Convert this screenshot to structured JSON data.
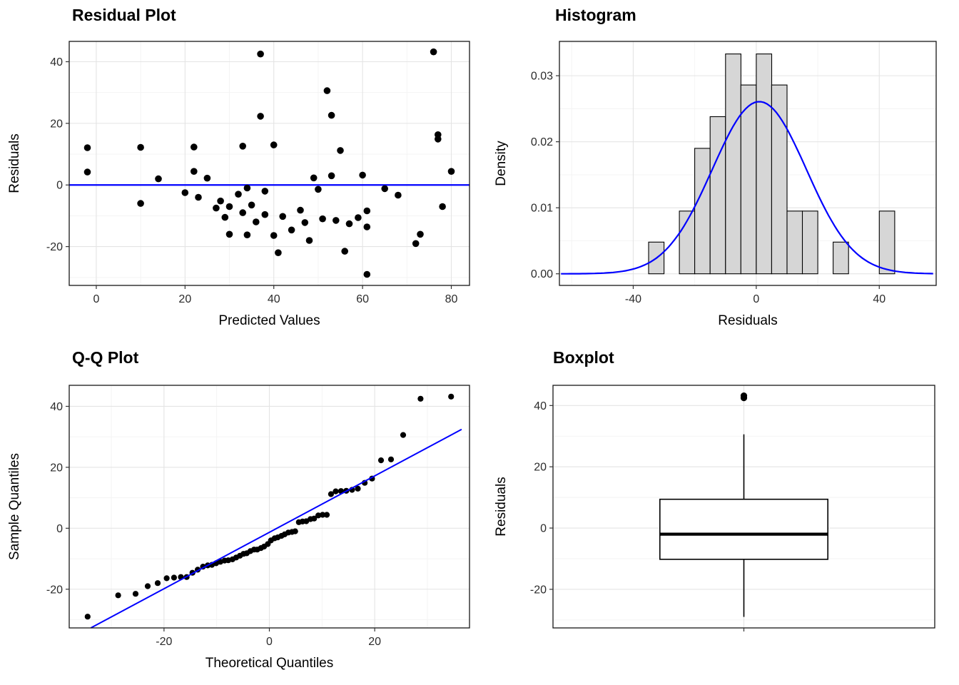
{
  "colors": {
    "accent_blue": "#0000ff",
    "point_black": "#000000",
    "bar_fill": "#d6d6d6",
    "bar_stroke": "#000000",
    "panel_border": "#171717",
    "grid_major": "#e4e4e4",
    "grid_minor": "#f3f3f3",
    "tick_color": "#333333",
    "tick_label_color": "#2b2b2b",
    "text_color": "#000000"
  },
  "chart_data": [
    {
      "id": "residual-plot",
      "type": "scatter",
      "title": "Residual Plot",
      "xlabel": "Predicted Values",
      "ylabel": "Residuals",
      "xlim": [
        -6.1,
        84.1
      ],
      "ylim": [
        -32.6,
        46.6
      ],
      "xticks": [
        0,
        20,
        40,
        60,
        80
      ],
      "xtick_labels": [
        "0",
        "20",
        "40",
        "60",
        "80"
      ],
      "yticks": [
        -20,
        0,
        20,
        40
      ],
      "ytick_labels": [
        "-20",
        "0",
        "20",
        "40"
      ],
      "xticks_minor": [
        10,
        30,
        50,
        70
      ],
      "yticks_minor": [
        -30,
        -10,
        10,
        30
      ],
      "hline": 0,
      "point_radius": 4.8,
      "points": [
        [
          -2,
          12.1
        ],
        [
          -2,
          4.2
        ],
        [
          10,
          12.2
        ],
        [
          10,
          -6
        ],
        [
          14,
          2
        ],
        [
          20,
          -2.5
        ],
        [
          22,
          12.3
        ],
        [
          22,
          4.4
        ],
        [
          23,
          -4
        ],
        [
          25,
          2.2
        ],
        [
          27,
          -7.5
        ],
        [
          28,
          -5.2
        ],
        [
          29,
          -10.5
        ],
        [
          30,
          -16
        ],
        [
          30,
          -7
        ],
        [
          32,
          -3
        ],
        [
          33,
          12.6
        ],
        [
          33,
          -9
        ],
        [
          34,
          -1
        ],
        [
          34,
          -16.2
        ],
        [
          35,
          -6.5
        ],
        [
          36,
          -12
        ],
        [
          37,
          42.5
        ],
        [
          37,
          22.3
        ],
        [
          38,
          -2
        ],
        [
          38,
          -9.6
        ],
        [
          40,
          13
        ],
        [
          40,
          -16.4
        ],
        [
          41,
          -22
        ],
        [
          42,
          -10.2
        ],
        [
          44,
          -14.6
        ],
        [
          46,
          -8.2
        ],
        [
          47,
          -12.2
        ],
        [
          48,
          -18
        ],
        [
          49,
          2.3
        ],
        [
          50,
          -1.4
        ],
        [
          51,
          -11
        ],
        [
          52,
          30.6
        ],
        [
          53,
          22.6
        ],
        [
          53,
          3
        ],
        [
          54,
          -11.5
        ],
        [
          55,
          11.2
        ],
        [
          56,
          -21.5
        ],
        [
          57,
          -12.6
        ],
        [
          59,
          -10.6
        ],
        [
          60,
          3.2
        ],
        [
          61,
          -8.4
        ],
        [
          61,
          -13.6
        ],
        [
          61,
          -29
        ],
        [
          65,
          -1.2
        ],
        [
          68,
          -3.3
        ],
        [
          72,
          -19
        ],
        [
          73,
          -16
        ],
        [
          76,
          43.2
        ],
        [
          77,
          16.3
        ],
        [
          77,
          14.9
        ],
        [
          78,
          -7
        ],
        [
          80,
          4.4
        ]
      ]
    },
    {
      "id": "histogram",
      "type": "histogram",
      "title": "Histogram",
      "xlabel": "Residuals",
      "ylabel": "Density",
      "xlim": [
        -64,
        58.5
      ],
      "ylim": [
        -0.00176,
        0.0352
      ],
      "xticks": [
        -40,
        0,
        40
      ],
      "xtick_labels": [
        "-40",
        "0",
        "40"
      ],
      "yticks": [
        0,
        0.01,
        0.02,
        0.03
      ],
      "ytick_labels": [
        "0.00",
        "0.01",
        "0.02",
        "0.03"
      ],
      "xticks_minor": [
        -60,
        -20,
        20
      ],
      "yticks_minor": [
        0.005,
        0.015,
        0.025,
        0.035
      ],
      "bin_width": 5,
      "bins": [
        [
          -32.5,
          0.0048
        ],
        [
          -22.5,
          0.0095
        ],
        [
          -17.5,
          0.019
        ],
        [
          -12.5,
          0.0238
        ],
        [
          -7.5,
          0.0333
        ],
        [
          -2.5,
          0.0286
        ],
        [
          2.5,
          0.0333
        ],
        [
          7.5,
          0.0286
        ],
        [
          12.5,
          0.0095
        ],
        [
          17.5,
          0.0095
        ],
        [
          27.5,
          0.0048
        ],
        [
          42.5,
          0.0095
        ]
      ],
      "curve": {
        "mean": 1,
        "sd": 15.3
      }
    },
    {
      "id": "qq-plot",
      "type": "scatter",
      "title": "Q-Q Plot",
      "xlabel": "Theoretical Quantiles",
      "ylabel": "Sample Quantiles",
      "xlim": [
        -38,
        38
      ],
      "ylim": [
        -32.7,
        46.9
      ],
      "xticks": [
        -20,
        0,
        20
      ],
      "xtick_labels": [
        "-20",
        "0",
        "20"
      ],
      "yticks": [
        -20,
        0,
        20,
        40
      ],
      "ytick_labels": [
        "-20",
        "0",
        "20",
        "40"
      ],
      "xticks_minor": [
        -30,
        -10,
        10,
        30
      ],
      "yticks_minor": [
        -30,
        -10,
        10,
        30
      ],
      "point_radius": 4.1,
      "line": [
        [
          -33.9,
          -32.7
        ],
        [
          36.5,
          32.45
        ]
      ],
      "points": [
        [
          -34.5,
          -29
        ],
        [
          -28.7,
          -22
        ],
        [
          -25.4,
          -21.5
        ],
        [
          -23.1,
          -19
        ],
        [
          -21.2,
          -18
        ],
        [
          -19.5,
          -16.4
        ],
        [
          -18.1,
          -16.2
        ],
        [
          -16.8,
          -16
        ],
        [
          -15.7,
          -16
        ],
        [
          -14.6,
          -14.6
        ],
        [
          -13.6,
          -13.6
        ],
        [
          -12.6,
          -12.6
        ],
        [
          -11.7,
          -12.2
        ],
        [
          -10.9,
          -12
        ],
        [
          -10.1,
          -11.5
        ],
        [
          -9.3,
          -11
        ],
        [
          -8.5,
          -10.6
        ],
        [
          -7.8,
          -10.5
        ],
        [
          -7,
          -10.2
        ],
        [
          -6.3,
          -9.6
        ],
        [
          -5.6,
          -9
        ],
        [
          -4.9,
          -8.4
        ],
        [
          -4.3,
          -8.2
        ],
        [
          -3.6,
          -7.5
        ],
        [
          -2.9,
          -7
        ],
        [
          -2.3,
          -7
        ],
        [
          -1.6,
          -6.5
        ],
        [
          -1,
          -6
        ],
        [
          -0.3,
          -5.2
        ],
        [
          0.3,
          -4
        ],
        [
          1,
          -3.3
        ],
        [
          1.6,
          -3
        ],
        [
          2.3,
          -2.5
        ],
        [
          2.9,
          -2
        ],
        [
          3.6,
          -1.4
        ],
        [
          4.3,
          -1.2
        ],
        [
          4.9,
          -1
        ],
        [
          5.6,
          2
        ],
        [
          6.3,
          2.2
        ],
        [
          7,
          2.3
        ],
        [
          7.8,
          3
        ],
        [
          8.5,
          3.2
        ],
        [
          9.3,
          4.2
        ],
        [
          10.1,
          4.4
        ],
        [
          10.9,
          4.4
        ],
        [
          11.7,
          11.2
        ],
        [
          12.6,
          12.1
        ],
        [
          13.6,
          12.2
        ],
        [
          14.6,
          12.3
        ],
        [
          15.7,
          12.6
        ],
        [
          16.8,
          13
        ],
        [
          18.1,
          14.9
        ],
        [
          19.5,
          16.3
        ],
        [
          21.2,
          22.3
        ],
        [
          23.1,
          22.6
        ],
        [
          25.4,
          30.6
        ],
        [
          28.7,
          42.5
        ],
        [
          34.5,
          43.2
        ]
      ]
    },
    {
      "id": "boxplot",
      "type": "boxplot",
      "title": "Boxplot",
      "xlabel": "",
      "ylabel": "Residuals",
      "xlim": [
        0,
        2
      ],
      "ylim": [
        -32.6,
        46.6
      ],
      "xticks": [
        1
      ],
      "xtick_labels": [
        ""
      ],
      "yticks": [
        -20,
        0,
        20,
        40
      ],
      "ytick_labels": [
        "-20",
        "0",
        "20",
        "40"
      ],
      "xticks_minor": [],
      "yticks_minor": [
        -30,
        -10,
        10,
        30
      ],
      "box_x": 1,
      "box_halfwidth": 0.44,
      "stats": {
        "whisker_low": -29,
        "q1": -10.2,
        "median": -2,
        "q3": 9.4,
        "whisker_high": 30.6
      },
      "outliers": [
        42.5,
        43.2
      ]
    }
  ]
}
